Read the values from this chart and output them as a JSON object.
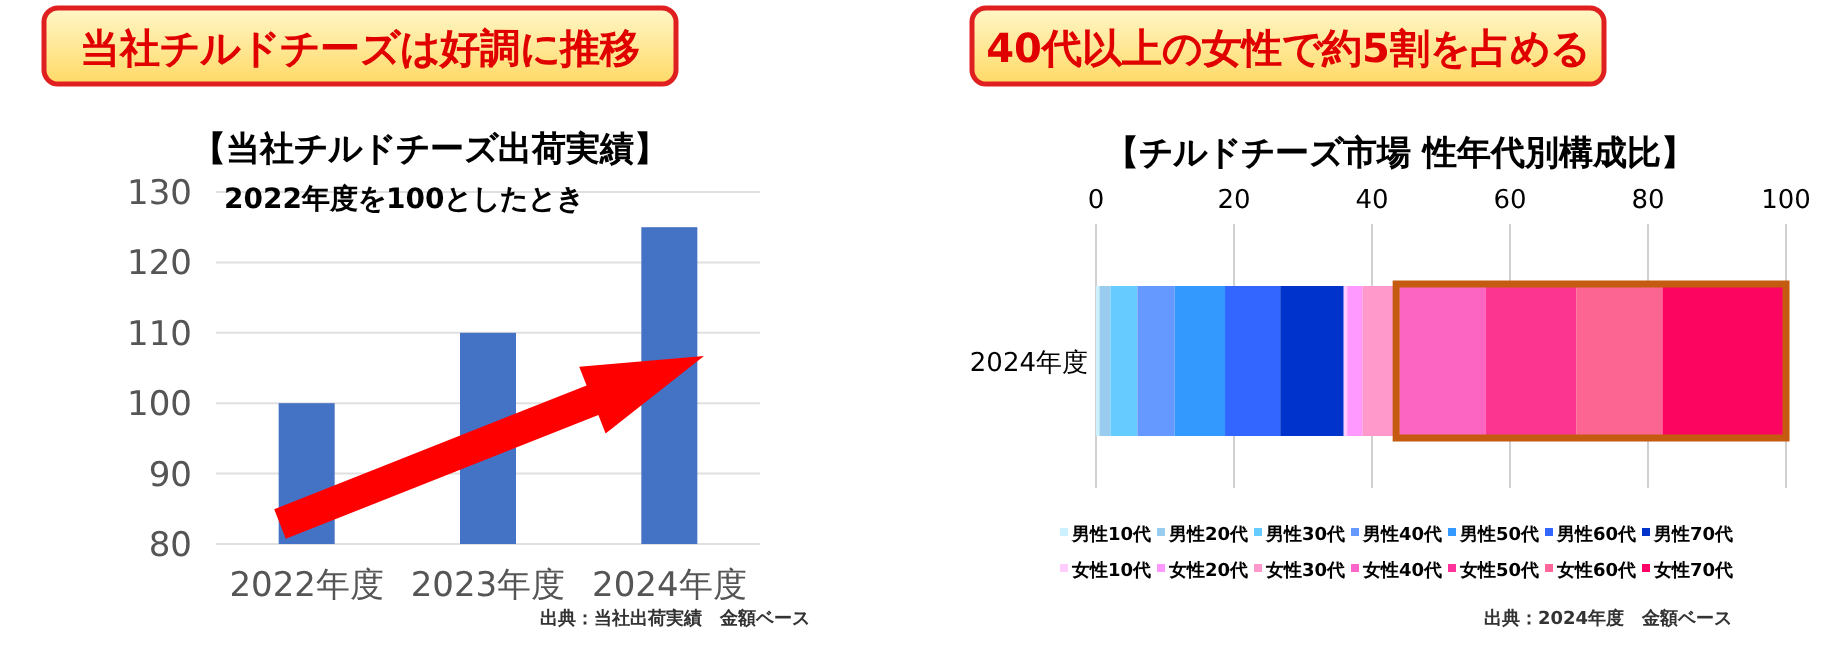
{
  "chart_data": [
    {
      "type": "bar",
      "title": "当社チルドチーズは好調に推移",
      "subtitle": "【当社チルドチーズ出荷実績】",
      "categories": [
        "2022年度",
        "2023年度",
        "2024年度"
      ],
      "values": [
        100,
        110,
        125
      ],
      "color": "#4472c4",
      "ylim": [
        80,
        130
      ],
      "yticks": [
        80,
        90,
        100,
        110,
        120,
        130
      ],
      "grid": "y",
      "annotations": [
        "2022年度を100としたとき",
        "出典：当社出荷実績　金額ベース"
      ]
    },
    {
      "type": "bar",
      "orientation": "horizontal",
      "stacked": true,
      "title": "40代以上の女性で約5割を占める",
      "subtitle": "【チルドチーズ市場 性年代別構成比】",
      "categories": [
        "2024年度"
      ],
      "xlim": [
        0,
        100
      ],
      "xticks": [
        0,
        20,
        40,
        60,
        80,
        100
      ],
      "grid": "x",
      "legend": "bottom",
      "series": [
        {
          "name": "男性10代",
          "color": "#ccf2ff",
          "values": [
            0.5
          ]
        },
        {
          "name": "男性20代",
          "color": "#99ccee",
          "values": [
            1.6
          ]
        },
        {
          "name": "男性30代",
          "color": "#66ccff",
          "values": [
            3.9
          ]
        },
        {
          "name": "男性40代",
          "color": "#6699ff",
          "values": [
            5.4
          ]
        },
        {
          "name": "男性50代",
          "color": "#3399ff",
          "values": [
            7.3
          ]
        },
        {
          "name": "男性60代",
          "color": "#3366ff",
          "values": [
            8.0
          ]
        },
        {
          "name": "男性70代",
          "color": "#0033cc",
          "values": [
            9.2
          ]
        },
        {
          "name": "女性10代",
          "color": "#ffccff",
          "values": [
            0.5
          ]
        },
        {
          "name": "女性20代",
          "color": "#ff99ff",
          "values": [
            2.2
          ]
        },
        {
          "name": "女性30代",
          "color": "#ff99cc",
          "values": [
            5.4
          ]
        },
        {
          "name": "女性40代",
          "color": "#ff66cc",
          "values": [
            12.5
          ]
        },
        {
          "name": "女性50代",
          "color": "#ff3399",
          "values": [
            13.1
          ]
        },
        {
          "name": "女性60代",
          "color": "#ff6699",
          "values": [
            12.5
          ]
        },
        {
          "name": "女性70代",
          "color": "#ff0066",
          "values": [
            17.9
          ]
        }
      ],
      "bands": [
        {
          "axis": "x",
          "from": 43.5,
          "to": 100,
          "color": "#c55a11"
        }
      ],
      "annotations": [
        "出典：2024年度　金額ベース"
      ]
    }
  ]
}
